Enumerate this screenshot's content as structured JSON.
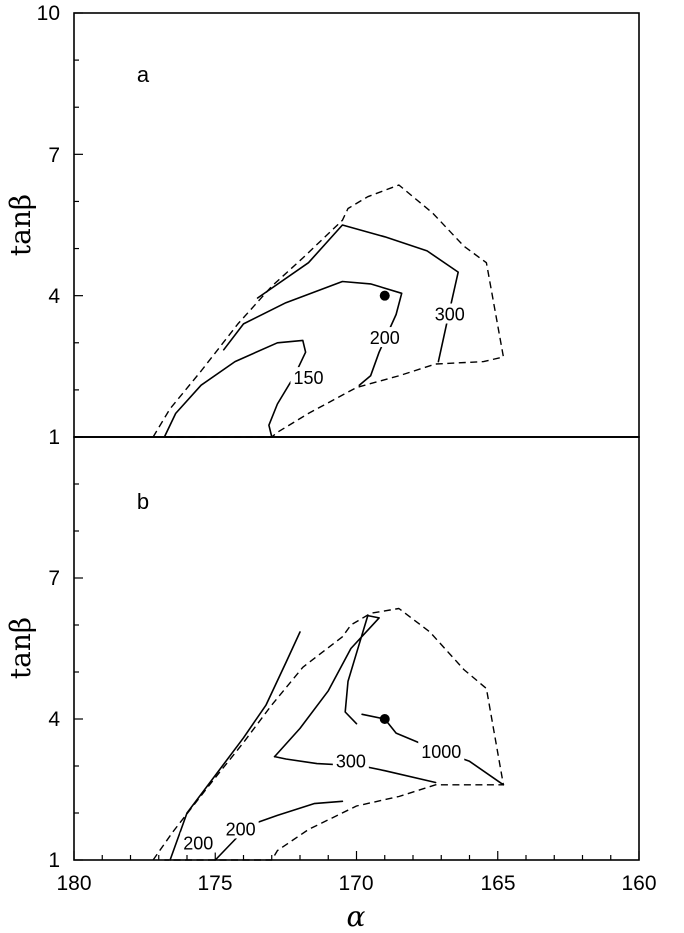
{
  "chart_data": [
    {
      "type": "line",
      "panel": "a",
      "ylabel": "tanβ",
      "xlabel": "",
      "xlim": [
        180,
        160
      ],
      "ylim": [
        1,
        10
      ],
      "x_ticks": [],
      "y_ticks": [
        "10",
        "7",
        "4"
      ],
      "contours": [
        {
          "label": "150",
          "style": "solid",
          "points": [
            [
              176.8,
              1.0
            ],
            [
              176.4,
              1.5
            ],
            [
              175.5,
              2.1
            ],
            [
              174.3,
              2.6
            ],
            [
              172.8,
              3.0
            ],
            [
              171.9,
              3.05
            ],
            [
              171.8,
              2.8
            ],
            [
              172.2,
              2.3
            ],
            [
              172.8,
              1.7
            ],
            [
              173.1,
              1.25
            ],
            [
              173.0,
              1.0
            ]
          ],
          "label_pos": [
            171.7,
            2.25
          ]
        },
        {
          "label": "200",
          "style": "solid",
          "points": [
            [
              174.7,
              2.85
            ],
            [
              174.0,
              3.4
            ],
            [
              172.5,
              3.85
            ],
            [
              170.5,
              4.3
            ],
            [
              169.5,
              4.25
            ],
            [
              168.4,
              4.05
            ],
            [
              168.6,
              3.6
            ],
            [
              169.2,
              2.8
            ],
            [
              169.5,
              2.3
            ],
            [
              169.9,
              2.1
            ]
          ],
          "label_pos": [
            169.0,
            3.1
          ]
        },
        {
          "label": "300",
          "style": "solid",
          "points": [
            [
              173.5,
              3.95
            ],
            [
              171.7,
              4.7
            ],
            [
              170.5,
              5.5
            ],
            [
              169.0,
              5.25
            ],
            [
              167.5,
              4.95
            ],
            [
              166.4,
              4.5
            ],
            [
              166.7,
              3.7
            ],
            [
              167.1,
              2.6
            ]
          ],
          "label_pos": [
            166.7,
            3.6
          ]
        },
        {
          "label": "",
          "style": "dashed",
          "points": [
            [
              177.2,
              1.0
            ],
            [
              176.6,
              1.6
            ],
            [
              175.5,
              2.4
            ],
            [
              174.2,
              3.4
            ],
            [
              173.0,
              4.2
            ],
            [
              171.9,
              4.8
            ],
            [
              170.5,
              5.6
            ],
            [
              170.3,
              5.85
            ],
            [
              169.6,
              6.1
            ],
            [
              168.5,
              6.35
            ],
            [
              167.3,
              5.75
            ],
            [
              166.2,
              5.05
            ],
            [
              165.4,
              4.7
            ],
            [
              164.8,
              2.7
            ],
            [
              165.5,
              2.6
            ],
            [
              167.2,
              2.55
            ],
            [
              168.5,
              2.3
            ],
            [
              170.0,
              2.05
            ],
            [
              171.7,
              1.5
            ],
            [
              172.8,
              1.1
            ],
            [
              173.0,
              1.0
            ],
            [
              176.8,
              1.0
            ]
          ]
        }
      ],
      "points": [
        [
          169.0,
          4.0
        ]
      ]
    },
    {
      "type": "line",
      "panel": "b",
      "ylabel": "tanβ",
      "xlabel": "α",
      "xlim": [
        180,
        160
      ],
      "ylim": [
        1,
        10
      ],
      "x_ticks": [
        "180",
        "175",
        "170",
        "165",
        "160"
      ],
      "y_ticks": [
        "7",
        "4",
        "1"
      ],
      "contours": [
        {
          "label": "200",
          "style": "solid",
          "points": [
            [
              176.6,
              1.0
            ],
            [
              176.0,
              2.0
            ],
            [
              175.0,
              2.8
            ],
            [
              174.0,
              3.6
            ],
            [
              173.2,
              4.3
            ],
            [
              172.5,
              5.2
            ],
            [
              172.0,
              5.85
            ]
          ],
          "label_pos": [
            175.6,
            1.35
          ]
        },
        {
          "label": "200",
          "style": "solid",
          "points": [
            [
              175.0,
              1.0
            ],
            [
              174.2,
              1.5
            ],
            [
              173.5,
              1.8
            ],
            [
              172.8,
              1.95
            ],
            [
              171.5,
              2.2
            ],
            [
              170.5,
              2.25
            ]
          ],
          "label_pos": [
            174.1,
            1.65
          ]
        },
        {
          "label": "300",
          "style": "solid",
          "points": [
            [
              172.9,
              3.2
            ],
            [
              172.0,
              3.8
            ],
            [
              171.0,
              4.6
            ],
            [
              170.2,
              5.5
            ],
            [
              169.2,
              6.15
            ],
            [
              169.6,
              6.2
            ],
            [
              169.9,
              5.6
            ],
            [
              170.3,
              4.8
            ],
            [
              170.4,
              4.15
            ],
            [
              170.0,
              3.9
            ]
          ],
          "label_pos": [
            170.2,
            3.1
          ]
        },
        {
          "label": "300",
          "style": "solid",
          "points": [
            [
              172.9,
              3.2
            ],
            [
              172.5,
              3.15
            ],
            [
              171.4,
              3.05
            ],
            [
              169.8,
              3.0
            ],
            [
              169.0,
              2.9
            ],
            [
              167.2,
              2.65
            ]
          ],
          "label_pos": [
            170.2,
            3.1
          ]
        },
        {
          "label": "1000",
          "style": "solid",
          "points": [
            [
              169.8,
              4.1
            ],
            [
              169.0,
              4.0
            ],
            [
              168.6,
              3.7
            ],
            [
              167.4,
              3.4
            ],
            [
              166.0,
              3.1
            ],
            [
              164.8,
              2.6
            ]
          ],
          "label_pos": [
            167.0,
            3.3
          ]
        },
        {
          "label": "",
          "style": "dashed",
          "points": [
            [
              177.2,
              1.0
            ],
            [
              176.5,
              1.6
            ],
            [
              175.2,
              2.6
            ],
            [
              174.0,
              3.5
            ],
            [
              173.0,
              4.3
            ],
            [
              171.9,
              5.1
            ],
            [
              170.5,
              5.75
            ],
            [
              170.2,
              6.0
            ],
            [
              169.5,
              6.25
            ],
            [
              168.5,
              6.35
            ],
            [
              167.4,
              5.85
            ],
            [
              166.2,
              5.05
            ],
            [
              165.4,
              4.65
            ],
            [
              164.8,
              2.6
            ],
            [
              167.2,
              2.6
            ],
            [
              168.5,
              2.35
            ],
            [
              170.0,
              2.15
            ],
            [
              171.7,
              1.65
            ],
            [
              172.8,
              1.2
            ],
            [
              173.0,
              1.0
            ],
            [
              176.8,
              1.0
            ]
          ]
        }
      ],
      "points": [
        [
          169.0,
          4.0
        ]
      ]
    }
  ],
  "panels": {
    "a": {
      "letter": "a",
      "ylabel": "tanβ",
      "y_ticks": [
        "10",
        "7",
        "4"
      ]
    },
    "b": {
      "letter": "b",
      "ylabel": "tanβ",
      "xlabel": "α",
      "y_ticks": [
        "7",
        "4",
        "1"
      ],
      "x_ticks": [
        "180",
        "175",
        "170",
        "165",
        "160"
      ]
    }
  },
  "shared_tick_label": "1"
}
